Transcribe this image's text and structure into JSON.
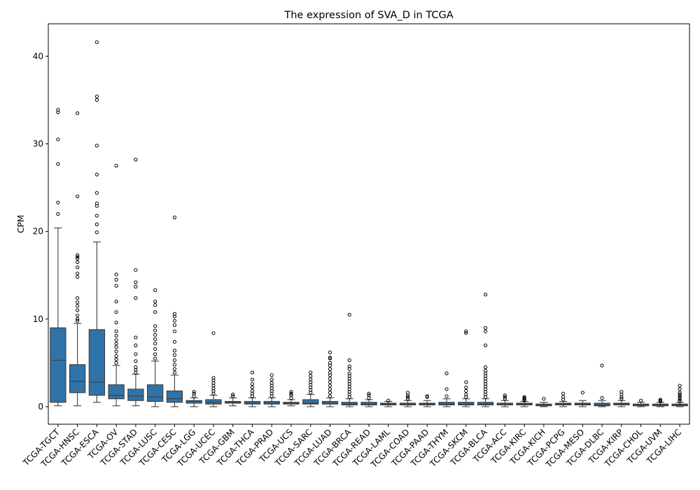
{
  "chart_data": {
    "type": "box",
    "title": "The expression of SVA_D in TCGA",
    "xlabel": "",
    "ylabel": "CPM",
    "ylim": [
      -2,
      43.7
    ],
    "yticks": [
      0,
      10,
      20,
      30,
      40
    ],
    "grid": false,
    "box_color": "#2f73a8",
    "categories": [
      "TCGA-TGCT",
      "TCGA-HNSC",
      "TCGA-ESCA",
      "TCGA-OV",
      "TCGA-STAD",
      "TCGA-LUSC",
      "TCGA-CESC",
      "TCGA-LGG",
      "TCGA-UCEC",
      "TCGA-GBM",
      "TCGA-THCA",
      "TCGA-PRAD",
      "TCGA-UCS",
      "TCGA-SARC",
      "TCGA-LUAD",
      "TCGA-BRCA",
      "TCGA-READ",
      "TCGA-LAML",
      "TCGA-COAD",
      "TCGA-PAAD",
      "TCGA-THYM",
      "TCGA-SKCM",
      "TCGA-BLCA",
      "TCGA-ACC",
      "TCGA-KIRC",
      "TCGA-KICH",
      "TCGA-PCPG",
      "TCGA-MESO",
      "TCGA-DLBC",
      "TCGA-KIRP",
      "TCGA-CHOL",
      "TCGA-UVM",
      "TCGA-LIHC"
    ],
    "boxes": [
      {
        "whislo": 0.1,
        "q1": 0.5,
        "med": 5.3,
        "q3": 9.0,
        "whishi": 20.4,
        "fliers": [
          22.0,
          23.3,
          27.7,
          30.5,
          33.6,
          33.9
        ]
      },
      {
        "whislo": 0.1,
        "q1": 1.6,
        "med": 2.9,
        "q3": 4.8,
        "whishi": 9.5,
        "fliers": [
          9.8,
          10.0,
          10.4,
          11.0,
          11.5,
          11.9,
          12.4,
          14.8,
          15.2,
          15.9,
          16.5,
          16.9,
          17.1,
          17.3,
          24.0,
          33.5
        ]
      },
      {
        "whislo": 0.5,
        "q1": 1.3,
        "med": 2.8,
        "q3": 8.8,
        "whishi": 18.8,
        "fliers": [
          19.9,
          20.8,
          21.8,
          22.9,
          23.2,
          24.4,
          26.5,
          29.8,
          35.0,
          35.4,
          41.6
        ]
      },
      {
        "whislo": 0.1,
        "q1": 0.9,
        "med": 1.3,
        "q3": 2.5,
        "whishi": 4.7,
        "fliers": [
          5.0,
          5.4,
          5.8,
          6.3,
          6.8,
          7.2,
          7.6,
          8.1,
          8.6,
          9.6,
          10.8,
          12.0,
          13.8,
          14.5,
          15.1,
          27.5
        ]
      },
      {
        "whislo": 0.1,
        "q1": 0.7,
        "med": 1.2,
        "q3": 2.0,
        "whishi": 3.7,
        "fliers": [
          3.9,
          4.2,
          4.5,
          5.2,
          6.0,
          7.0,
          7.9,
          12.4,
          13.7,
          14.2,
          15.6,
          28.2
        ]
      },
      {
        "whislo": 0.0,
        "q1": 0.6,
        "med": 1.1,
        "q3": 2.5,
        "whishi": 5.2,
        "fliers": [
          5.5,
          6.0,
          6.6,
          7.2,
          7.7,
          8.2,
          8.7,
          9.2,
          10.8,
          11.6,
          12.0,
          13.3
        ]
      },
      {
        "whislo": 0.0,
        "q1": 0.5,
        "med": 0.9,
        "q3": 1.8,
        "whishi": 3.6,
        "fliers": [
          3.9,
          4.3,
          4.8,
          5.3,
          5.9,
          6.4,
          7.4,
          8.6,
          9.3,
          9.8,
          10.3,
          10.6,
          21.6
        ]
      },
      {
        "whislo": 0.0,
        "q1": 0.4,
        "med": 0.6,
        "q3": 0.7,
        "whishi": 1.0,
        "fliers": [
          1.2,
          1.5,
          1.7
        ]
      },
      {
        "whislo": 0.0,
        "q1": 0.3,
        "med": 0.5,
        "q3": 0.8,
        "whishi": 1.3,
        "fliers": [
          1.5,
          1.8,
          2.1,
          2.4,
          2.7,
          3.0,
          3.3,
          8.4
        ]
      },
      {
        "whislo": 0.1,
        "q1": 0.4,
        "med": 0.5,
        "q3": 0.6,
        "whishi": 1.0,
        "fliers": [
          1.2,
          1.4
        ]
      },
      {
        "whislo": 0.0,
        "q1": 0.3,
        "med": 0.4,
        "q3": 0.6,
        "whishi": 1.0,
        "fliers": [
          1.2,
          1.5,
          1.8,
          2.2,
          2.6,
          3.1,
          3.9
        ]
      },
      {
        "whislo": 0.0,
        "q1": 0.3,
        "med": 0.4,
        "q3": 0.6,
        "whishi": 1.0,
        "fliers": [
          1.2,
          1.5,
          1.8,
          2.1,
          2.4,
          2.7,
          3.1,
          3.6
        ]
      },
      {
        "whislo": 0.1,
        "q1": 0.3,
        "med": 0.4,
        "q3": 0.5,
        "whishi": 0.8,
        "fliers": [
          1.0,
          1.3,
          1.5,
          1.7
        ]
      },
      {
        "whislo": 0.0,
        "q1": 0.3,
        "med": 0.4,
        "q3": 0.8,
        "whishi": 1.4,
        "fliers": [
          1.6,
          1.9,
          2.2,
          2.5,
          2.8,
          3.1,
          3.5,
          3.9
        ]
      },
      {
        "whislo": 0.0,
        "q1": 0.3,
        "med": 0.4,
        "q3": 0.6,
        "whishi": 1.0,
        "fliers": [
          1.2,
          1.6,
          2.0,
          2.4,
          2.8,
          3.2,
          3.6,
          3.9,
          4.3,
          4.7,
          5.0,
          5.5,
          5.6,
          6.2
        ]
      },
      {
        "whislo": 0.0,
        "q1": 0.2,
        "med": 0.3,
        "q3": 0.5,
        "whishi": 0.9,
        "fliers": [
          1.1,
          1.4,
          1.7,
          2.0,
          2.3,
          2.6,
          2.9,
          3.2,
          3.5,
          3.8,
          4.3,
          4.6,
          5.3,
          10.5
        ]
      },
      {
        "whislo": 0.0,
        "q1": 0.2,
        "med": 0.3,
        "q3": 0.5,
        "whishi": 0.8,
        "fliers": [
          1.0,
          1.3,
          1.5
        ]
      },
      {
        "whislo": 0.0,
        "q1": 0.2,
        "med": 0.3,
        "q3": 0.4,
        "whishi": 0.6,
        "fliers": [
          0.7
        ]
      },
      {
        "whislo": 0.0,
        "q1": 0.2,
        "med": 0.3,
        "q3": 0.4,
        "whishi": 0.7,
        "fliers": [
          0.9,
          1.1,
          1.3,
          1.6
        ]
      },
      {
        "whislo": 0.0,
        "q1": 0.2,
        "med": 0.3,
        "q3": 0.4,
        "whishi": 0.7,
        "fliers": [
          1.1,
          1.2
        ]
      },
      {
        "whislo": 0.0,
        "q1": 0.2,
        "med": 0.3,
        "q3": 0.5,
        "whishi": 0.9,
        "fliers": [
          1.2,
          2.0,
          3.8
        ]
      },
      {
        "whislo": 0.0,
        "q1": 0.2,
        "med": 0.3,
        "q3": 0.5,
        "whishi": 0.9,
        "fliers": [
          1.1,
          1.4,
          1.8,
          2.2,
          2.8,
          8.4,
          8.6
        ]
      },
      {
        "whislo": 0.0,
        "q1": 0.2,
        "med": 0.3,
        "q3": 0.5,
        "whishi": 0.9,
        "fliers": [
          1.1,
          1.4,
          1.7,
          2.0,
          2.3,
          2.6,
          2.9,
          3.2,
          3.5,
          3.8,
          4.1,
          4.5,
          7.0,
          8.6,
          9.0,
          12.8
        ]
      },
      {
        "whislo": 0.0,
        "q1": 0.2,
        "med": 0.3,
        "q3": 0.4,
        "whishi": 0.7,
        "fliers": [
          0.9,
          1.1,
          1.3
        ]
      },
      {
        "whislo": 0.0,
        "q1": 0.2,
        "med": 0.3,
        "q3": 0.4,
        "whishi": 0.6,
        "fliers": [
          0.7,
          0.8,
          0.9,
          1.0,
          1.1
        ]
      },
      {
        "whislo": 0.0,
        "q1": 0.1,
        "med": 0.2,
        "q3": 0.3,
        "whishi": 0.5,
        "fliers": [
          0.9
        ]
      },
      {
        "whislo": 0.0,
        "q1": 0.2,
        "med": 0.3,
        "q3": 0.4,
        "whishi": 0.6,
        "fliers": [
          0.8,
          1.1,
          1.5
        ]
      },
      {
        "whislo": 0.0,
        "q1": 0.2,
        "med": 0.3,
        "q3": 0.4,
        "whishi": 0.7,
        "fliers": [
          1.6
        ]
      },
      {
        "whislo": 0.0,
        "q1": 0.1,
        "med": 0.2,
        "q3": 0.4,
        "whishi": 0.7,
        "fliers": [
          1.0,
          4.7
        ]
      },
      {
        "whislo": 0.0,
        "q1": 0.2,
        "med": 0.3,
        "q3": 0.4,
        "whishi": 0.7,
        "fliers": [
          0.9,
          1.1,
          1.4,
          1.7
        ]
      },
      {
        "whislo": 0.0,
        "q1": 0.1,
        "med": 0.2,
        "q3": 0.3,
        "whishi": 0.5,
        "fliers": [
          0.7
        ]
      },
      {
        "whislo": 0.0,
        "q1": 0.1,
        "med": 0.2,
        "q3": 0.3,
        "whishi": 0.5,
        "fliers": [
          0.6,
          0.7,
          0.8
        ]
      },
      {
        "whislo": 0.0,
        "q1": 0.1,
        "med": 0.2,
        "q3": 0.3,
        "whishi": 0.5,
        "fliers": [
          0.6,
          0.8,
          1.0,
          1.2,
          1.4,
          1.6,
          2.0,
          2.4
        ]
      }
    ]
  }
}
